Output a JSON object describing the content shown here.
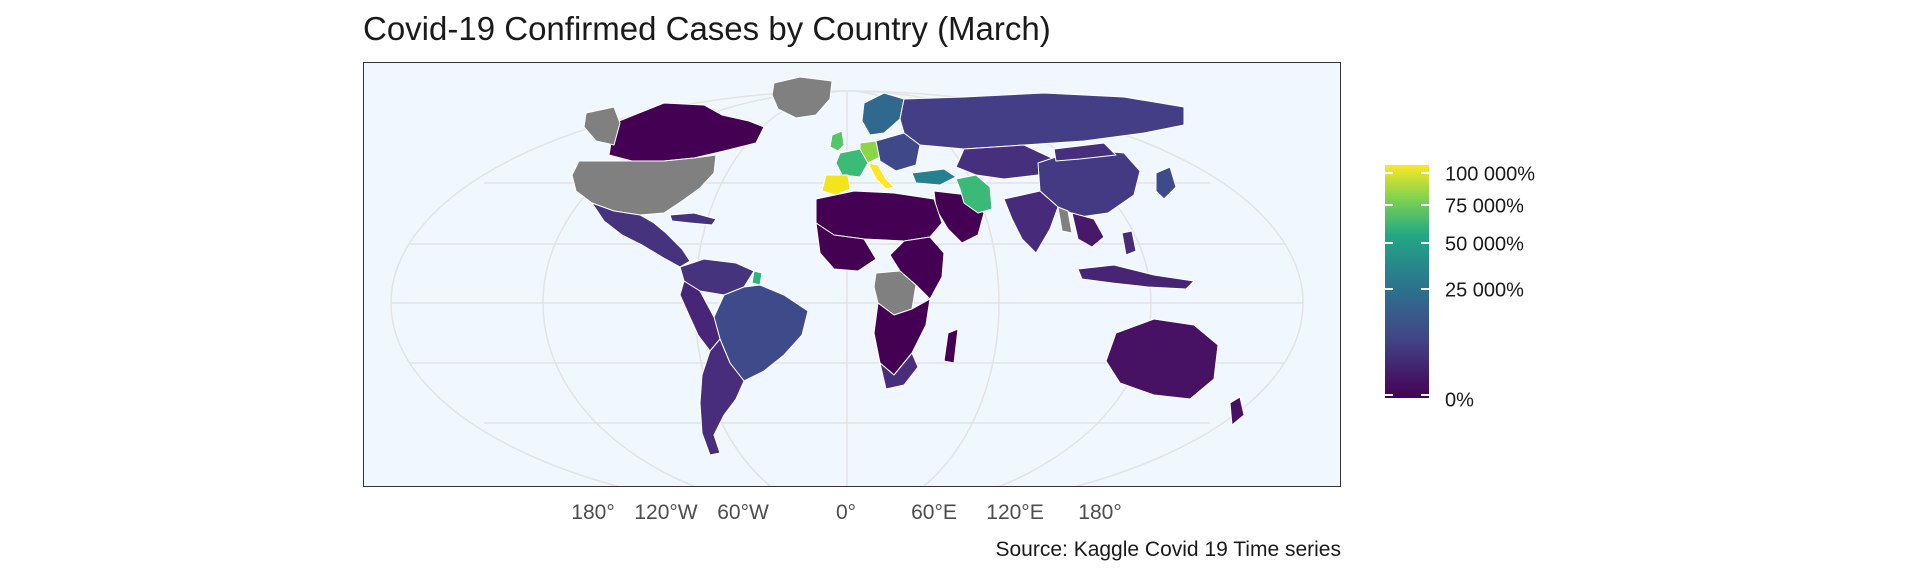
{
  "title": "Covid-19 Confirmed Cases by Country (March)",
  "caption": "Source: Kaggle Covid 19 Time series",
  "x_axis": {
    "tick_labels": [
      "180°",
      "120°W",
      "60°W",
      "0°",
      "60°E",
      "120°E",
      "180°"
    ]
  },
  "legend": {
    "labels": [
      "100 000%",
      "75 000%",
      "50 000%",
      "25 000%",
      "0%"
    ],
    "scale": "viridis",
    "colors": [
      "#fde725",
      "#7ad151",
      "#22a884",
      "#2a788e",
      "#414487",
      "#440154"
    ]
  },
  "colors": {
    "panel_background": "#f0f7fe",
    "no_data": "#808080",
    "ocean_grid": "#e6e6e6"
  },
  "chart_data": {
    "type": "choropleth",
    "projection": "Winkel-style world map",
    "title": "Covid-19 Confirmed Cases by Country (March)",
    "legend_position": "right",
    "grid": true,
    "regions": [
      {
        "name": "Canada",
        "level": 0.01
      },
      {
        "name": "United States",
        "level": null
      },
      {
        "name": "Greenland",
        "level": null
      },
      {
        "name": "Mexico",
        "level": 0.1
      },
      {
        "name": "Brazil",
        "level": 0.2
      },
      {
        "name": "South America",
        "level": 0.08
      },
      {
        "name": "Russia",
        "level": 0.12
      },
      {
        "name": "China",
        "level": 0.13
      },
      {
        "name": "India",
        "level": 0.1
      },
      {
        "name": "Spain",
        "level": 0.97
      },
      {
        "name": "France",
        "level": 0.6
      },
      {
        "name": "Italy",
        "level": 0.98
      },
      {
        "name": "Germany",
        "level": 0.85
      },
      {
        "name": "United Kingdom",
        "level": 0.65
      },
      {
        "name": "Turkey",
        "level": 0.35
      },
      {
        "name": "Iran",
        "level": 0.6
      },
      {
        "name": "Africa",
        "level": 0.03
      },
      {
        "name": "DR Congo",
        "level": null
      },
      {
        "name": "Australia",
        "level": 0.05
      },
      {
        "name": "Southeast Asia",
        "level": 0.1
      }
    ]
  }
}
